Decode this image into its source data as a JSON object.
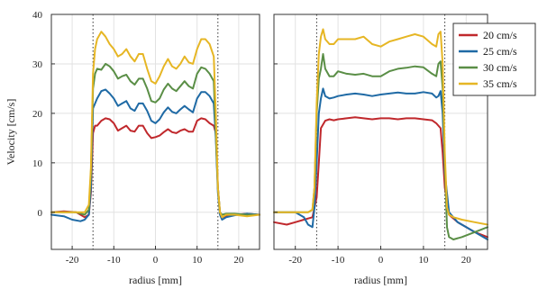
{
  "chart_data": [
    {
      "type": "line",
      "xlabel": "radius [mm]",
      "ylabel": "Velocity [cm/s]",
      "xlim": [
        -25,
        25
      ],
      "ylim": [
        -7.5,
        40
      ],
      "xticks": [
        -20,
        -10,
        0,
        10,
        20
      ],
      "xtick_labels": [
        "-20",
        "-10",
        "0",
        "10",
        "20"
      ],
      "yticks": [
        0,
        10,
        20,
        30,
        40
      ],
      "ytick_labels": [
        "0",
        "10",
        "20",
        "30",
        "40"
      ],
      "grid": true,
      "vlines_x": [
        -15,
        15
      ],
      "series": [
        {
          "name": "20 cm/s",
          "color": "#c0282c",
          "x": [
            -25,
            -22,
            -19,
            -17,
            -16,
            -15.5,
            -15,
            -14.5,
            -14,
            -13,
            -12,
            -11,
            -10,
            -9,
            -8,
            -7,
            -6,
            -5,
            -4,
            -3,
            -2,
            -1,
            0,
            1,
            2,
            3,
            4,
            5,
            6,
            7,
            8,
            9,
            10,
            11,
            12,
            13,
            14,
            14.5,
            15,
            15.5,
            16,
            17,
            19,
            22,
            25
          ],
          "y": [
            0,
            0.2,
            0,
            -1,
            -0.5,
            4,
            16,
            17.5,
            17.5,
            18.5,
            19,
            18.8,
            18,
            16.5,
            17,
            17.5,
            16.5,
            16.3,
            17.5,
            17.5,
            16,
            15,
            15.2,
            15.5,
            16.2,
            16.8,
            16.2,
            16,
            16.5,
            16.8,
            16.3,
            16.3,
            18.5,
            19,
            18.8,
            18,
            17.5,
            16,
            5,
            0,
            -1,
            -0.8,
            -0.5,
            -0.3,
            -0.5
          ]
        },
        {
          "name": "25 cm/s",
          "color": "#1f6aa5",
          "x": [
            -25,
            -22,
            -20,
            -18,
            -17,
            -16,
            -15.5,
            -15,
            -14.5,
            -14,
            -13,
            -12,
            -11,
            -10,
            -9,
            -8,
            -7,
            -6,
            -5,
            -4,
            -3,
            -2,
            -1,
            0,
            1,
            2,
            3,
            4,
            5,
            6,
            7,
            8,
            9,
            10,
            11,
            12,
            13,
            14,
            14.5,
            15,
            15.5,
            16,
            17,
            19,
            22,
            25
          ],
          "y": [
            -0.5,
            -0.8,
            -1.5,
            -1.8,
            -1.5,
            -0.5,
            5,
            21,
            22,
            23,
            24.5,
            24.8,
            24,
            23,
            21.5,
            22,
            22.5,
            21,
            20.5,
            22,
            22,
            20.5,
            18.5,
            18,
            18.8,
            20.2,
            21.2,
            20.3,
            20,
            20.8,
            21.5,
            20.8,
            20.2,
            23,
            24.3,
            24.3,
            23.5,
            22,
            15,
            4,
            -0.5,
            -1.5,
            -1,
            -0.6,
            -0.3,
            -0.5
          ]
        },
        {
          "name": "30 cm/s",
          "color": "#5a8e46",
          "x": [
            -25,
            -22,
            -19,
            -17,
            -16,
            -15.5,
            -15,
            -14.5,
            -14,
            -13,
            -12,
            -11,
            -10,
            -9,
            -8,
            -7,
            -6,
            -5,
            -4,
            -3,
            -2,
            -1,
            0,
            1,
            2,
            3,
            4,
            5,
            6,
            7,
            8,
            9,
            10,
            11,
            12,
            13,
            14,
            14.5,
            15,
            15.5,
            16,
            17,
            19,
            22,
            25
          ],
          "y": [
            0,
            0,
            0,
            -0.5,
            0.5,
            8,
            25,
            28,
            29,
            28.8,
            30,
            29.5,
            28.5,
            27,
            27.5,
            27.8,
            26.5,
            25.8,
            27,
            27,
            25,
            22.5,
            22.2,
            23,
            24.8,
            26,
            25,
            24.5,
            25.5,
            26.5,
            25.5,
            25,
            28,
            29.3,
            29,
            28,
            26.5,
            16,
            5,
            0,
            -0.5,
            -0.3,
            -0.3,
            -0.5,
            -0.5
          ]
        },
        {
          "name": "35 cm/s",
          "color": "#e6b624",
          "x": [
            -25,
            -22,
            -19,
            -17,
            -16,
            -15.5,
            -15,
            -14.5,
            -14,
            -13,
            -12,
            -11,
            -10,
            -9,
            -8,
            -7,
            -6,
            -5,
            -4,
            -3,
            -2,
            -1,
            0,
            1,
            2,
            3,
            4,
            5,
            6,
            7,
            8,
            9,
            10,
            11,
            12,
            13,
            14,
            14.5,
            15,
            15.5,
            16,
            17,
            19,
            22,
            25
          ],
          "y": [
            0,
            0,
            0,
            0,
            1.5,
            9,
            28,
            33,
            35,
            36.5,
            35.5,
            34,
            33,
            31.5,
            32,
            33,
            31.5,
            30.5,
            32,
            32,
            29,
            26.5,
            26,
            27.5,
            29.5,
            31,
            29.5,
            29,
            30,
            31.5,
            30.3,
            30,
            33,
            35,
            35,
            34,
            31.5,
            20,
            5,
            0,
            -1,
            -0.5,
            -0.5,
            -0.8,
            -0.5
          ]
        }
      ]
    },
    {
      "type": "line",
      "xlabel": "radius [mm]",
      "ylabel": "",
      "xlim": [
        -25,
        25
      ],
      "ylim": [
        -7.5,
        40
      ],
      "xticks": [
        -20,
        -10,
        0,
        10,
        20
      ],
      "xtick_labels": [
        "-20",
        "-10",
        "0",
        "10",
        "20"
      ],
      "yticks": [
        0,
        10,
        20,
        30,
        40
      ],
      "ytick_labels": [],
      "grid": true,
      "vlines_x": [
        -15,
        15
      ],
      "legend": {
        "placement": "top-right",
        "labels": [
          "20 cm/s",
          "25 cm/s",
          "30 cm/s",
          "35 cm/s"
        ]
      },
      "series": [
        {
          "name": "20 cm/s",
          "color": "#c0282c",
          "x": [
            -25,
            -22,
            -20,
            -18,
            -16,
            -15,
            -14.5,
            -14,
            -13,
            -12,
            -11,
            -10,
            -8,
            -6,
            -4,
            -2,
            0,
            2,
            4,
            6,
            8,
            10,
            12,
            13,
            14,
            14.5,
            15,
            16,
            18,
            20,
            22,
            25
          ],
          "y": [
            -2,
            -2.5,
            -2,
            -1.5,
            -1,
            3,
            10,
            17,
            18.5,
            18.8,
            18.6,
            18.8,
            19,
            19.2,
            19,
            18.8,
            19,
            19,
            18.8,
            19,
            19,
            18.8,
            18.6,
            18,
            17,
            12,
            5,
            -0.5,
            -2,
            -3,
            -4,
            -5
          ]
        },
        {
          "name": "25 cm/s",
          "color": "#1f6aa5",
          "x": [
            -25,
            -22,
            -20,
            -18,
            -17,
            -16,
            -15.5,
            -15,
            -14.5,
            -14,
            -13.5,
            -13,
            -12,
            -11,
            -10,
            -8,
            -6,
            -4,
            -2,
            0,
            2,
            4,
            6,
            8,
            10,
            12,
            13,
            13.5,
            14,
            14.5,
            15,
            16,
            18,
            20,
            22,
            25
          ],
          "y": [
            0,
            0,
            0,
            -1,
            -2.5,
            -3,
            1,
            10,
            20,
            23,
            25,
            23.5,
            23,
            23.2,
            23.5,
            23.8,
            24,
            23.8,
            23.5,
            23.8,
            24,
            24.2,
            24,
            24,
            24.3,
            24,
            23.2,
            23.5,
            24.5,
            20,
            8,
            0,
            -2,
            -3,
            -4,
            -5.5
          ]
        },
        {
          "name": "30 cm/s",
          "color": "#5a8e46",
          "x": [
            -25,
            -20,
            -17,
            -16,
            -15.5,
            -15,
            -14.5,
            -14,
            -13.5,
            -13,
            -12,
            -11,
            -10,
            -8,
            -6,
            -4,
            -2,
            0,
            2,
            4,
            6,
            8,
            10,
            12,
            13,
            13.5,
            14,
            14.5,
            15,
            15.5,
            16,
            17,
            19,
            22,
            25
          ],
          "y": [
            0,
            0,
            0,
            0.5,
            5,
            20,
            27,
            29,
            32,
            29,
            27.5,
            27.5,
            28.5,
            28,
            27.8,
            28,
            27.5,
            27.5,
            28.5,
            29,
            29.2,
            29.5,
            29.3,
            28,
            27.5,
            30,
            30.5,
            25,
            10,
            -3,
            -5,
            -5.5,
            -5,
            -4,
            -3
          ]
        },
        {
          "name": "35 cm/s",
          "color": "#e6b624",
          "x": [
            -25,
            -20,
            -17,
            -16,
            -15.5,
            -15,
            -14.5,
            -14,
            -13.5,
            -13,
            -12,
            -11,
            -10,
            -8,
            -6,
            -4,
            -2,
            0,
            2,
            4,
            6,
            8,
            10,
            12,
            13,
            13.5,
            14,
            14.5,
            15,
            15.5,
            16,
            17,
            19,
            22,
            25
          ],
          "y": [
            0,
            0,
            0,
            0.5,
            5,
            22,
            32,
            35.5,
            37,
            35,
            34,
            34,
            35,
            35,
            35,
            35.5,
            34,
            33.5,
            34.5,
            35,
            35.5,
            36,
            35.5,
            34,
            33.5,
            36,
            36.5,
            30,
            12,
            1,
            -0.5,
            -1,
            -1.5,
            -2,
            -2.5
          ]
        }
      ]
    }
  ]
}
